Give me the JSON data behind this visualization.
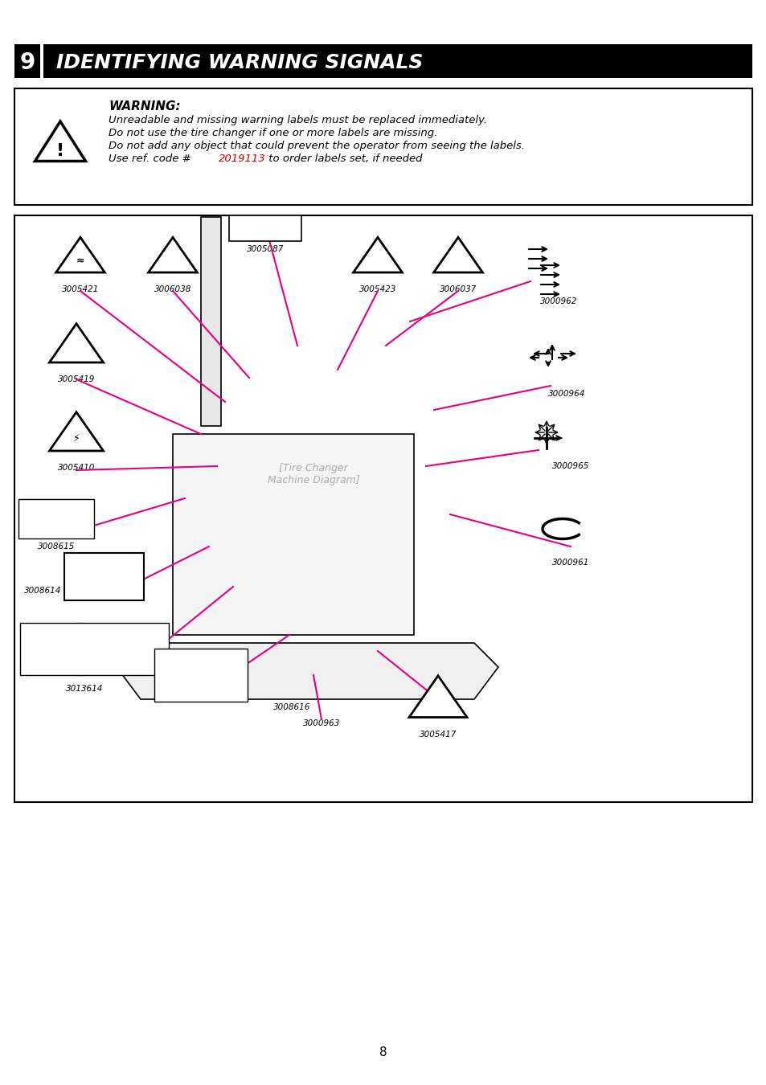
{
  "page_bg": "#ffffff",
  "header_bg": "#000000",
  "header_text_num": "9",
  "header_text_title": "IDENTIFYING WARNING SIGNALS",
  "header_text_color": "#ffffff",
  "warning_box_border": "#000000",
  "warning_title": "WARNING:",
  "warning_lines": [
    "Unreadable and missing warning labels must be replaced immediately.",
    "Do not use the tire changer if one or more labels are missing.",
    "Do not add any object that could prevent the operator from seeing the labels.",
    "Use ref. code # ",
    "2019113",
    " to order labels set, if needed"
  ],
  "warning_red_code": "#cc0000",
  "diagram_border": "#000000",
  "page_number": "8",
  "label_codes_top": [
    "3005421",
    "3006038",
    "3005087",
    "3005423",
    "3006037"
  ],
  "label_codes_mid": [
    "3005419",
    "3005410",
    "3000962",
    "3000964",
    "3000965"
  ],
  "label_codes_bot": [
    "3008615",
    "3008614",
    "3000963",
    "3008616",
    "3005417",
    "3000961",
    "3013614"
  ],
  "magenta_line_color": "#e6007e",
  "line_width": 1.5,
  "font_family": "DejaVu Sans"
}
